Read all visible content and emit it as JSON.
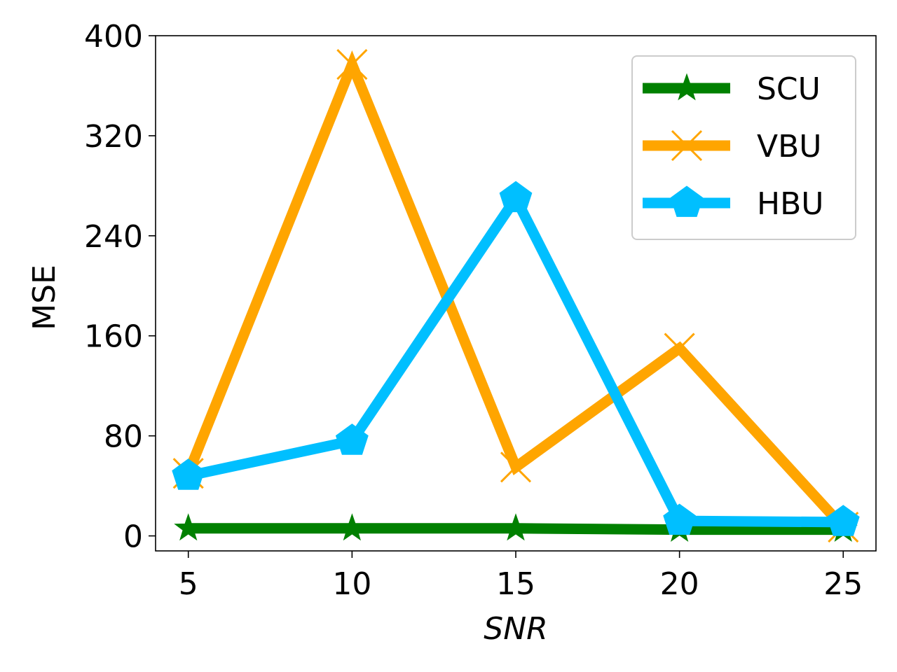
{
  "chart_data": {
    "type": "line",
    "title": "",
    "xlabel": "SNR",
    "ylabel": "MSE",
    "x": [
      5,
      10,
      15,
      20,
      25
    ],
    "xlim": [
      4,
      26
    ],
    "ylim": [
      -12,
      400
    ],
    "xticks": [
      5,
      10,
      15,
      20,
      25
    ],
    "yticks": [
      0,
      80,
      160,
      240,
      320,
      400
    ],
    "grid": false,
    "legend_position": "top-right",
    "series": [
      {
        "name": "SCU",
        "color": "#008000",
        "marker": "star",
        "values": [
          6,
          6,
          6,
          5,
          5
        ]
      },
      {
        "name": "VBU",
        "color": "#FFA500",
        "marker": "x",
        "values": [
          50,
          377,
          55,
          150,
          7
        ]
      },
      {
        "name": "HBU",
        "color": "#00BFFF",
        "marker": "pentagon",
        "values": [
          48,
          76,
          270,
          12,
          11
        ]
      }
    ]
  }
}
